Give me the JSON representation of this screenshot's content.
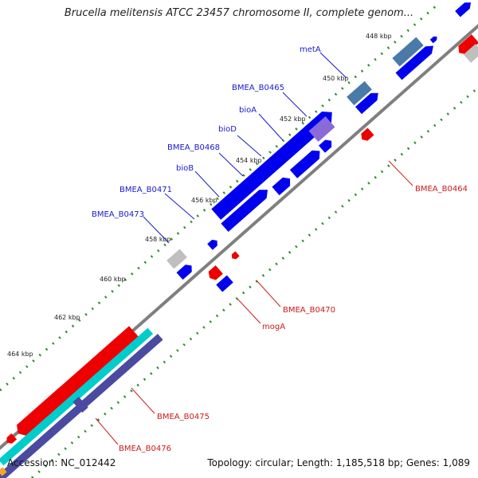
{
  "title": "Brucella melitensis ATCC 23457 chromosome II, complete genom...",
  "footer": {
    "accession": "Accession: NC_012442",
    "summary": "Topology: circular; Length: 1,185,518 bp; Genes: 1,089"
  },
  "colors": {
    "backbone": "#7f7f7f",
    "forward_cds": "#0000ee",
    "reverse_cds": "#ee0000",
    "rna": "#00cccc",
    "other": "#4a4aa0",
    "pseudo": "#bfbfbf",
    "tick_green": "#2e8b2e",
    "forward_label": "#1a1acc",
    "reverse_label": "#cc1a1a"
  },
  "ticks": [
    "448 kbp",
    "450 kbp",
    "452 kbp",
    "454 kbp",
    "456 kbp",
    "458 kbp",
    "460 kbp",
    "462 kbp",
    "464 kbp"
  ],
  "forward_labels": [
    "metA",
    "BMEA_B0465",
    "bioA",
    "bioD",
    "BMEA_B0468",
    "bioB",
    "BMEA_B0471",
    "BMEA_B0473"
  ],
  "reverse_labels": [
    "BMEA_B0464",
    "BMEA_B0470",
    "mogA",
    "BMEA_B0475",
    "BMEA_B0476"
  ]
}
